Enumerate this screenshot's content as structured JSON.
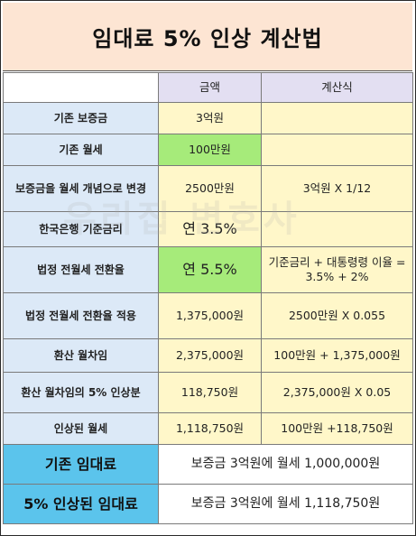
{
  "title": "임대료 5% 인상 계산법",
  "watermark": "우리집 변호사",
  "header": {
    "amount": "금액",
    "formula": "계산식"
  },
  "rows": [
    {
      "label": "기존 보증금",
      "amount": "3억원",
      "formula": ""
    },
    {
      "label": "기존 월세",
      "amount": "100만원",
      "formula": ""
    },
    {
      "label": "보증금을 월세 개념으로 변경",
      "amount": "2500만원",
      "formula": "3억원 X 1/12"
    },
    {
      "label": "한국은행 기준금리",
      "amount": "연 3.5%",
      "formula": ""
    },
    {
      "label": "법정 전월세 전환율",
      "amount": "연 5.5%",
      "formula": "기준금리 + 대통령령 이율 = 3.5% + 2%"
    },
    {
      "label": "법정 전월세 전환율 적용",
      "amount": "1,375,000원",
      "formula": "2500만원 X 0.055"
    },
    {
      "label": "환산 월차임",
      "amount": "2,375,000원",
      "formula": "100만원 + 1,375,000원"
    },
    {
      "label": "환산 월차임의 5% 인상분",
      "amount": "118,750원",
      "formula": "2,375,000원 X 0.05"
    },
    {
      "label": "인상된 월세",
      "amount": "1,118,750원",
      "formula": "100만원 +118,750원"
    }
  ],
  "summary": [
    {
      "label": "기존 임대료",
      "value": "보증금 3억원에 월세 1,000,000원"
    },
    {
      "label": "5% 인상된 임대료",
      "value": "보증금 3억원에 월세 1,118,750원"
    }
  ],
  "colors": {
    "title_bg": "#fde5d3",
    "header_bg": "#e3dff2",
    "label_bg": "#dce9f7",
    "value_bg": "#fff7c9",
    "highlight_green": "#a6eb7a",
    "summary_label_bg": "#5bc4ec"
  }
}
